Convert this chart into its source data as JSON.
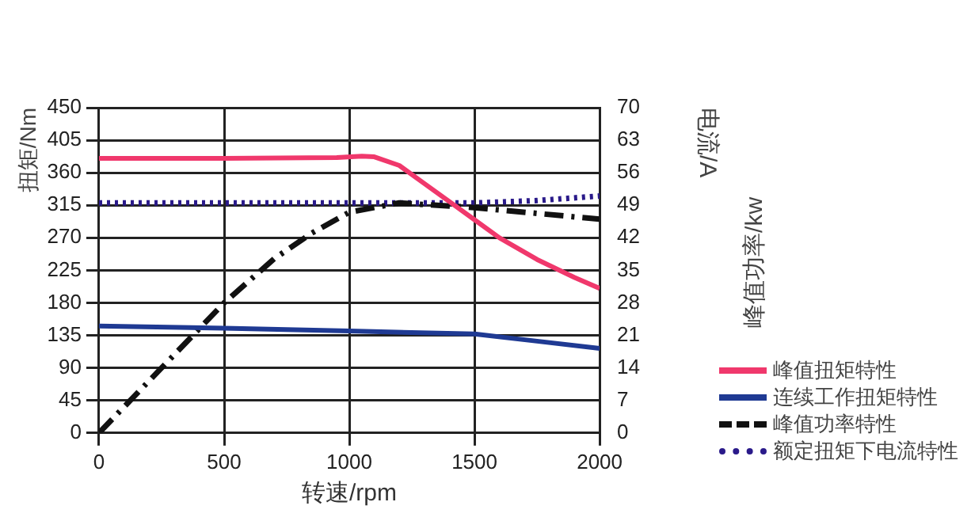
{
  "chart_data": {
    "type": "line",
    "xlabel": "转速/rpm",
    "ylabel": "扭矩/Nm",
    "y2label": "电流/A",
    "annotations": [
      "峰值功率/kw"
    ],
    "xlim": [
      0,
      2000
    ],
    "xticks": [
      0,
      500,
      1000,
      1500,
      2000
    ],
    "ylim": [
      0,
      450
    ],
    "yticks": [
      0,
      45,
      90,
      135,
      180,
      225,
      270,
      315,
      360,
      405,
      450
    ],
    "y2lim": [
      0,
      70
    ],
    "y2ticks": [
      0,
      7,
      14,
      21,
      28,
      35,
      42,
      49,
      56,
      63,
      70
    ],
    "grid": true,
    "legend": "bottom right",
    "marker": "none",
    "series": [
      {
        "name": "峰值扭矩特性",
        "color": "#f0386c",
        "line_style": "solid",
        "x": [
          0,
          500,
          950,
          1050,
          1100,
          1200,
          1300,
          1400,
          1500,
          1600,
          1750,
          1900,
          2000
        ],
        "values": [
          380,
          380,
          381,
          383,
          382,
          370,
          345,
          320,
          295,
          270,
          240,
          215,
          200
        ]
      },
      {
        "name": "连续工作扭矩特性",
        "color": "#1f3a93",
        "line_style": "solid",
        "x": [
          0,
          500,
          1000,
          1500,
          1750,
          2000
        ],
        "values": [
          148,
          145,
          141,
          137,
          127,
          117
        ]
      },
      {
        "name": "峰值功率特性",
        "color": "#111111",
        "line_style": "dashed",
        "axis": "y2",
        "x": [
          0,
          250,
          500,
          700,
          850,
          1000,
          1200,
          1500,
          2000
        ],
        "values": [
          0,
          14,
          28,
          37.5,
          43,
          47.5,
          49.5,
          48.5,
          46
        ]
      },
      {
        "name": "额定扭矩下电流特性",
        "color": "#2a1a8a",
        "line_style": "dotted",
        "axis": "y2",
        "x": [
          0,
          1500,
          1750,
          2000
        ],
        "values": [
          49.5,
          49.5,
          50,
          51
        ]
      }
    ]
  }
}
